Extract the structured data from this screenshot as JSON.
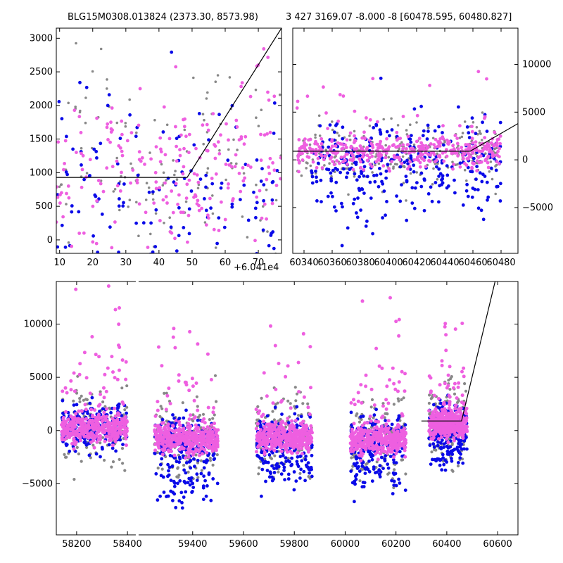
{
  "chart_data": [
    {
      "type": "scatter",
      "id": "top-left",
      "title": "BLG15M0308.013824 (2373.30, 8573.98)",
      "x_offset_label": "+6.041e4",
      "xlim": [
        9,
        77
      ],
      "ylim": [
        -200,
        3150
      ],
      "x_ticks": [
        10,
        20,
        30,
        40,
        50,
        60,
        70
      ],
      "x_tick_labels": [
        "10",
        "20",
        "30",
        "40",
        "50",
        "60",
        "70"
      ],
      "y_ticks": [
        0,
        500,
        1000,
        1500,
        2000,
        2500,
        3000
      ],
      "y_tick_labels": [
        "0",
        "500",
        "1000",
        "1500",
        "2000",
        "2500",
        "3000"
      ],
      "y_axis_side": "left",
      "model_line": [
        [
          9,
          930
        ],
        [
          48.5,
          930
        ],
        [
          77,
          3150
        ]
      ],
      "series": [
        {
          "color": "#888888",
          "x_range": [
            9,
            77
          ],
          "y_center": 1100,
          "y_spread": 900,
          "count": 130
        },
        {
          "color": "#0a0ae8",
          "x_range": [
            9,
            77
          ],
          "y_center": 500,
          "y_spread": 900,
          "count": 170
        },
        {
          "color": "#ee5fe0",
          "x_range": [
            9,
            77
          ],
          "y_center": 1200,
          "y_spread": 700,
          "count": 220
        }
      ]
    },
    {
      "type": "scatter",
      "id": "top-right",
      "title": "3 427 3169.07 -8.000 -8 [60478.595, 60480.827]",
      "xlim": [
        60332,
        60492
      ],
      "ylim": [
        -9800,
        13800
      ],
      "x_ticks": [
        60340,
        60360,
        60380,
        60400,
        60420,
        60440,
        60460,
        60480
      ],
      "x_tick_labels": [
        "60340",
        "60360",
        "60380",
        "60400",
        "60420",
        "60440",
        "60460",
        "60480"
      ],
      "y_ticks": [
        -5000,
        0,
        5000,
        10000
      ],
      "y_tick_labels": [
        "−5000",
        "0",
        "5000",
        "10000"
      ],
      "y_axis_side": "right",
      "model_line": [
        [
          60332,
          900
        ],
        [
          60458,
          900
        ],
        [
          60492,
          3800
        ]
      ],
      "series": [
        {
          "color": "#888888",
          "x_range": [
            60335,
            60480
          ],
          "y_center": 800,
          "y_spread": 1500,
          "count": 260
        },
        {
          "color": "#0a0ae8",
          "x_range": [
            60345,
            60480
          ],
          "y_center": -600,
          "y_spread": 2600,
          "count": 300
        },
        {
          "color": "#ee5fe0",
          "x_range": [
            60335,
            60480
          ],
          "y_center": 900,
          "y_spread": 800,
          "count": 420
        }
      ]
    },
    {
      "type": "scatter",
      "id": "bottom",
      "title": "",
      "xlim": [
        58120,
        60680
      ],
      "break_gap": [
        58430,
        59190
      ],
      "ylim": [
        -9800,
        14000
      ],
      "x_ticks": [
        58200,
        58400,
        59400,
        59600,
        59800,
        60000,
        60200,
        60400,
        60600
      ],
      "x_tick_labels": [
        "58200",
        "58400",
        "59400",
        "59600",
        "59800",
        "60000",
        "60200",
        "60400",
        "60600"
      ],
      "y_ticks": [
        -5000,
        0,
        5000,
        10000
      ],
      "y_tick_labels": [
        "−5000",
        "0",
        "5000",
        "10000"
      ],
      "y_axis_side": "left",
      "model_line": [
        [
          60300,
          900
        ],
        [
          60458,
          900
        ],
        [
          60590,
          14000
        ]
      ],
      "seasons": [
        {
          "x_range": [
            58140,
            58400
          ],
          "y_center": 200,
          "blue_bias": 0
        },
        {
          "x_range": [
            59250,
            59500
          ],
          "y_center": -800,
          "blue_bias": -2500
        },
        {
          "x_range": [
            59650,
            59870
          ],
          "y_center": -600,
          "blue_bias": -1800
        },
        {
          "x_range": [
            60020,
            60240
          ],
          "y_center": -900,
          "blue_bias": -2000
        },
        {
          "x_range": [
            60330,
            60480
          ],
          "y_center": 600,
          "blue_bias": -1500
        }
      ]
    }
  ]
}
